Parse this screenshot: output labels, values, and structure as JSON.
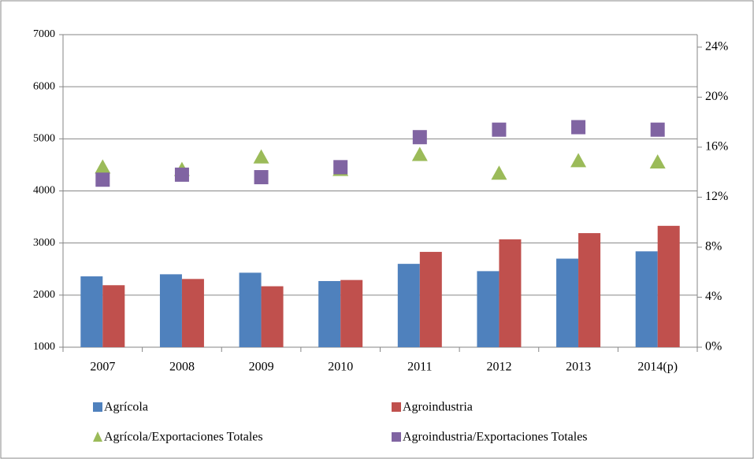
{
  "chart_data": {
    "type": "bar",
    "categories": [
      "2007",
      "2008",
      "2009",
      "2010",
      "2011",
      "2012",
      "2013",
      "2014(p)"
    ],
    "series": [
      {
        "name": "Agrícola",
        "color": "#4f81bd",
        "type": "bar",
        "values": [
          2360,
          2400,
          2430,
          2270,
          2600,
          2460,
          2700,
          2840
        ]
      },
      {
        "name": "Agroindustria",
        "color": "#c0504d",
        "type": "bar",
        "values": [
          2190,
          2310,
          2170,
          2290,
          2830,
          3070,
          3190,
          3330
        ]
      },
      {
        "name": "Agrícola/Exportaciones Totales",
        "color": "#9bbb59",
        "type": "triangle",
        "axis": "y2",
        "values": [
          14.4,
          14.2,
          15.2,
          14.2,
          15.4,
          13.9,
          14.9,
          14.8
        ]
      },
      {
        "name": "Agroindustria/Exportaciones Totales",
        "color": "#8064a2",
        "type": "square",
        "axis": "y2",
        "values": [
          13.4,
          13.8,
          13.6,
          14.4,
          16.8,
          17.4,
          17.6,
          17.4
        ]
      }
    ],
    "ylim": [
      1000,
      7000
    ],
    "yticks": [
      1000,
      2000,
      3000,
      4000,
      5000,
      6000,
      7000
    ],
    "y2lim": [
      0,
      25
    ],
    "y2ticks": [
      {
        "value": 0,
        "label": "0%"
      },
      {
        "value": 4,
        "label": "4%"
      },
      {
        "value": 8,
        "label": "8%"
      },
      {
        "value": 12,
        "label": "12%"
      },
      {
        "value": 16,
        "label": "16%"
      },
      {
        "value": 20,
        "label": "20%"
      },
      {
        "value": 24,
        "label": "24%"
      }
    ],
    "grid": true,
    "legend": "bottom"
  }
}
